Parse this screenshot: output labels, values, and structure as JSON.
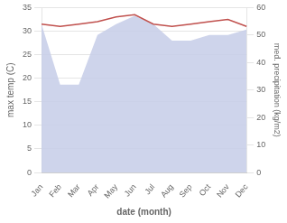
{
  "chart_data": {
    "type": "line",
    "categories": [
      "Jan",
      "Feb",
      "Mar",
      "Apr",
      "May",
      "Jun",
      "Jul",
      "Aug",
      "Sep",
      "Oct",
      "Nov",
      "Dec"
    ],
    "series": [
      {
        "type": "area",
        "color": "#c5cce8",
        "axis": "y2",
        "values": [
          54,
          32,
          32,
          50,
          54,
          57,
          54,
          48,
          48,
          50,
          50,
          52
        ]
      },
      {
        "type": "line",
        "color": "#c0504d",
        "values": [
          31.5,
          31.0,
          31.5,
          32.0,
          33.0,
          33.5,
          31.5,
          31.0,
          31.5,
          32.0,
          32.5,
          31.0
        ]
      }
    ],
    "xlabel": "date (month)",
    "ylabel": "max temp (C)",
    "y2label": "med. precipitation (kg/m2)",
    "ylim": [
      0,
      35
    ],
    "yticks": [
      0,
      5,
      10,
      15,
      20,
      25,
      30,
      35
    ],
    "y2lim": [
      0,
      60
    ],
    "y2ticks": [
      0,
      10,
      20,
      30,
      40,
      50,
      60
    ],
    "grid": true
  }
}
